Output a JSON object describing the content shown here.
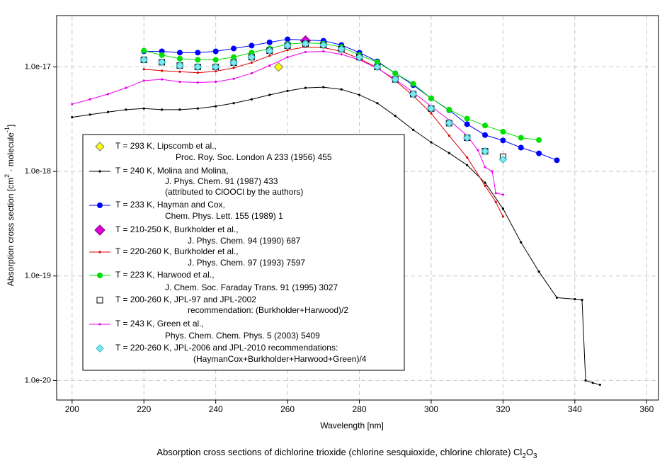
{
  "chart_data": {
    "type": "line",
    "caption": {
      "text": "Absorption cross sections of dichlorine trioxide (chlorine sesquioxide, chlorine chlorate) Cl",
      "sub1": "2",
      "mid": "O",
      "sub2": "3"
    },
    "xlabel": "Wavelength [nm]",
    "ylabel": {
      "text": "Absorption cross section [cm",
      "sup1": "2",
      "mid": " · molecule",
      "sup2": "-1",
      "end": "]"
    },
    "xlim": [
      195.7,
      363.3
    ],
    "ylim": [
      6.5e-21,
      3.1e-17
    ],
    "log_y": true,
    "grid": true,
    "xticks": [
      200,
      220,
      240,
      260,
      280,
      300,
      320,
      340,
      360
    ],
    "yticks": [
      {
        "value": 1e-20,
        "label": "1.0e-20"
      },
      {
        "value": 1e-19,
        "label": "1.0e-19"
      },
      {
        "value": 1e-18,
        "label": "1.0e-18"
      },
      {
        "value": 1e-17,
        "label": "1.0e-17"
      }
    ],
    "legend": "lower-left",
    "series": [
      {
        "name": "T = 293 K, Lipscomb et al.,",
        "notes": [
          "Proc. Roy. Soc. London A 233 (1956) 455"
        ],
        "marker": "diamond",
        "line": false,
        "color": "#ffff00",
        "x": [
          257.5
        ],
        "values": [
          1e-17
        ]
      },
      {
        "name": "T = 240 K, Molina and Molina,",
        "notes": [
          "J. Phys. Chem. 91 (1987) 433",
          "(attributed to ClOOCl by the authors)"
        ],
        "marker": "dot",
        "line": true,
        "color": "#000000",
        "x": [
          200,
          205,
          210,
          215,
          220,
          225,
          230,
          235,
          240,
          245,
          250,
          255,
          260,
          265,
          270,
          275,
          280,
          285,
          290,
          295,
          300,
          305,
          310,
          315,
          320,
          325,
          330,
          335,
          340,
          342,
          343,
          345,
          347
        ],
        "values": [
          3.3e-18,
          3.5e-18,
          3.7e-18,
          3.9e-18,
          4e-18,
          3.9e-18,
          3.9e-18,
          4e-18,
          4.2e-18,
          4.5e-18,
          4.9e-18,
          5.4e-18,
          5.9e-18,
          6.3e-18,
          6.4e-18,
          6.1e-18,
          5.4e-18,
          4.5e-18,
          3.4e-18,
          2.5e-18,
          1.9e-18,
          1.5e-18,
          1.15e-18,
          7.8e-19,
          4.4e-19,
          2.1e-19,
          1.1e-19,
          6.2e-20,
          6e-20,
          5.9e-20,
          1e-20,
          9.5e-21,
          9.1e-21
        ]
      },
      {
        "name": "T = 233 K, Hayman and Cox,",
        "notes": [
          "Chem. Phys. Lett. 155 (1989) 1"
        ],
        "marker": "circle",
        "line": true,
        "color": "#0000ff",
        "x": [
          220,
          225,
          230,
          235,
          240,
          245,
          250,
          255,
          260,
          265,
          270,
          275,
          280,
          285,
          290,
          295,
          300,
          305,
          310,
          315,
          320,
          325,
          330,
          335
        ],
        "values": [
          1.41e-17,
          1.41e-17,
          1.37e-17,
          1.37e-17,
          1.41e-17,
          1.5e-17,
          1.6e-17,
          1.72e-17,
          1.84e-17,
          1.81e-17,
          1.78e-17,
          1.62e-17,
          1.37e-17,
          1.13e-17,
          8.7e-18,
          6.7e-18,
          5e-18,
          3.86e-18,
          2.83e-18,
          2.23e-18,
          1.98e-18,
          1.69e-18,
          1.49e-18,
          1.28e-18
        ]
      },
      {
        "name": "T = 210-250 K, Burkholder et al.,",
        "notes": [
          "J. Phys. Chem. 94 (1990) 687"
        ],
        "marker": "bigdiamond",
        "line": false,
        "color": "#dd00dd",
        "x": [
          265
        ],
        "values": [
          1.78e-17
        ]
      },
      {
        "name": "T = 220-260 K, Burkholder et al.,",
        "notes": [
          "J. Phys. Chem. 97 (1993) 7597"
        ],
        "marker": "dot",
        "line": true,
        "color": "#dd0000",
        "x": [
          220,
          225,
          230,
          235,
          240,
          245,
          250,
          255,
          260,
          265,
          270,
          275,
          280,
          285,
          290,
          295,
          300,
          305,
          310,
          315,
          318,
          320
        ],
        "values": [
          9.5e-18,
          9.2e-18,
          9e-18,
          8.8e-18,
          9.1e-18,
          9.8e-18,
          1.1e-17,
          1.28e-17,
          1.45e-17,
          1.55e-17,
          1.53e-17,
          1.41e-17,
          1.2e-17,
          9.8e-18,
          7.4e-18,
          5.3e-18,
          3.6e-18,
          2.2e-18,
          1.36e-18,
          7.3e-19,
          5.1e-19,
          3.7e-19
        ]
      },
      {
        "name": "T = 223 K, Harwood et al.,",
        "notes": [
          "J. Chem. Soc. Faraday Trans. 91 (1995) 3027"
        ],
        "marker": "circle",
        "line": true,
        "color": "#00e000",
        "x": [
          220,
          225,
          230,
          235,
          240,
          245,
          250,
          255,
          260,
          265,
          270,
          275,
          280,
          285,
          290,
          295,
          300,
          305,
          310,
          315,
          320,
          325,
          330
        ],
        "values": [
          1.43e-17,
          1.3e-17,
          1.2e-17,
          1.17e-17,
          1.17e-17,
          1.24e-17,
          1.37e-17,
          1.5e-17,
          1.65e-17,
          1.7e-17,
          1.67e-17,
          1.55e-17,
          1.3e-17,
          1.11e-17,
          8.7e-18,
          6.9e-18,
          5e-18,
          3.9e-18,
          3.2e-18,
          2.75e-18,
          2.4e-18,
          2.1e-18,
          2e-18
        ]
      },
      {
        "name": "T = 200-260 K, JPL-97 and JPL-2002",
        "notes": [
          "recommendation: (Burkholder+Harwood)/2"
        ],
        "marker": "square",
        "line": false,
        "color": "#000000",
        "x": [
          220,
          225,
          230,
          235,
          240,
          245,
          250,
          255,
          260,
          265,
          270,
          275,
          280,
          285,
          290,
          295,
          300,
          305,
          310,
          315,
          320
        ],
        "values": [
          1.17e-17,
          1.11e-17,
          1.03e-17,
          1e-17,
          1e-17,
          1.1e-17,
          1.24e-17,
          1.43e-17,
          1.6e-17,
          1.67e-17,
          1.62e-17,
          1.48e-17,
          1.24e-17,
          1e-17,
          7.6e-18,
          5.5e-18,
          4e-18,
          2.9e-18,
          2.1e-18,
          1.56e-18,
          1.38e-18
        ]
      },
      {
        "name": "T = 243 K, Green et al.,",
        "notes": [
          "Phys. Chem. Chem. Phys. 5 (2003) 5409"
        ],
        "marker": "dot",
        "line": true,
        "color": "#ee00ee",
        "x": [
          200,
          205,
          210,
          215,
          220,
          225,
          230,
          235,
          240,
          245,
          250,
          255,
          260,
          265,
          270,
          275,
          280,
          285,
          290,
          295,
          300,
          305,
          310,
          313,
          315,
          317,
          318,
          320
        ],
        "values": [
          4.4e-18,
          4.9e-18,
          5.5e-18,
          6.3e-18,
          7.4e-18,
          7.6e-18,
          7.2e-18,
          7.1e-18,
          7.2e-18,
          7.7e-18,
          8.7e-18,
          1.03e-17,
          1.24e-17,
          1.39e-17,
          1.41e-17,
          1.32e-17,
          1.17e-17,
          9.7e-18,
          7.6e-18,
          5.7e-18,
          4.2e-18,
          3.1e-18,
          2.2e-18,
          1.6e-18,
          1.1e-18,
          1e-18,
          6.2e-19,
          6e-19
        ]
      },
      {
        "name": "T = 220-260 K, JPL-2006 and JPL-2010 recommendations:",
        "notes": [
          "(HaymanCox+Burkholder+Harwood+Green)/4"
        ],
        "marker": "cyandiamond",
        "line": false,
        "color": "#80e8f0",
        "x": [
          220,
          225,
          230,
          235,
          240,
          245,
          250,
          255,
          260,
          265,
          270,
          275,
          280,
          285,
          290,
          295,
          300,
          305,
          310,
          315,
          320
        ],
        "values": [
          1.17e-17,
          1.11e-17,
          1.03e-17,
          1e-17,
          1e-17,
          1.1e-17,
          1.24e-17,
          1.43e-17,
          1.6e-17,
          1.67e-17,
          1.62e-17,
          1.48e-17,
          1.24e-17,
          1e-17,
          7.6e-18,
          5.5e-18,
          4e-18,
          2.9e-18,
          2.1e-18,
          1.56e-18,
          1.3e-18
        ]
      }
    ]
  }
}
